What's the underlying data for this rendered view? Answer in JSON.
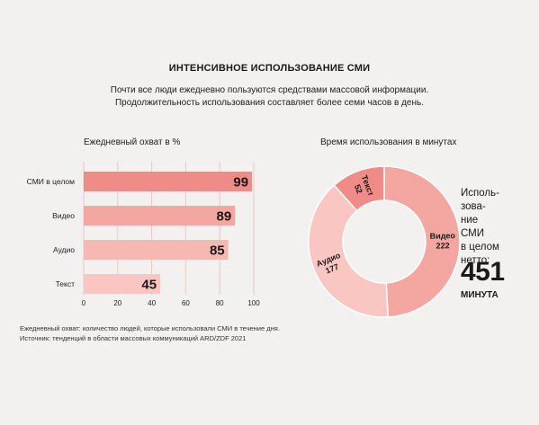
{
  "header": {
    "title": "ИНТЕНСИВНОЕ ИСПОЛЬЗОВАНИЕ СМИ",
    "subtitle_lines": [
      "Почти все люди ежедневно пользуются средствами массовой информации.",
      "Продолжительность использования составляет более семи часов в день."
    ]
  },
  "notes": [
    "Ежедневный охват: количество людей, которые использовали СМИ в течение дня.",
    "Источник: тенденций в области массовых коммуникаций ARD/ZDF 2021"
  ],
  "summary": {
    "text_lines": [
      "Исполь-",
      "зова-",
      "ние",
      "СМИ",
      "в целом",
      "нетто:"
    ],
    "total": "451",
    "unit": "МИНУТА"
  },
  "chart_data": [
    {
      "type": "bar",
      "orientation": "horizontal",
      "title": "Ежедневный охват в %",
      "categories": [
        "СМИ в целом",
        "Видео",
        "Аудио",
        "Текст"
      ],
      "values": [
        99,
        89,
        85,
        45
      ],
      "value_labels": [
        "99",
        "89",
        "85",
        "45"
      ],
      "xlim": [
        0,
        100
      ],
      "xticks": [
        "0",
        "20",
        "40",
        "60",
        "80",
        "100"
      ],
      "grid": true,
      "colors": [
        "#ef8c87",
        "#f4a6a1",
        "#f7b7b3",
        "#f9c6c2"
      ]
    },
    {
      "type": "pie",
      "donut": true,
      "title": "Время использования в минутах",
      "categories": [
        "Видео",
        "Аудио",
        "Текст"
      ],
      "values": [
        222,
        177,
        52
      ],
      "value_labels": [
        "222",
        "177",
        "52"
      ],
      "colors": [
        "#f4a6a1",
        "#f9c6c2",
        "#ef8c87"
      ]
    }
  ]
}
